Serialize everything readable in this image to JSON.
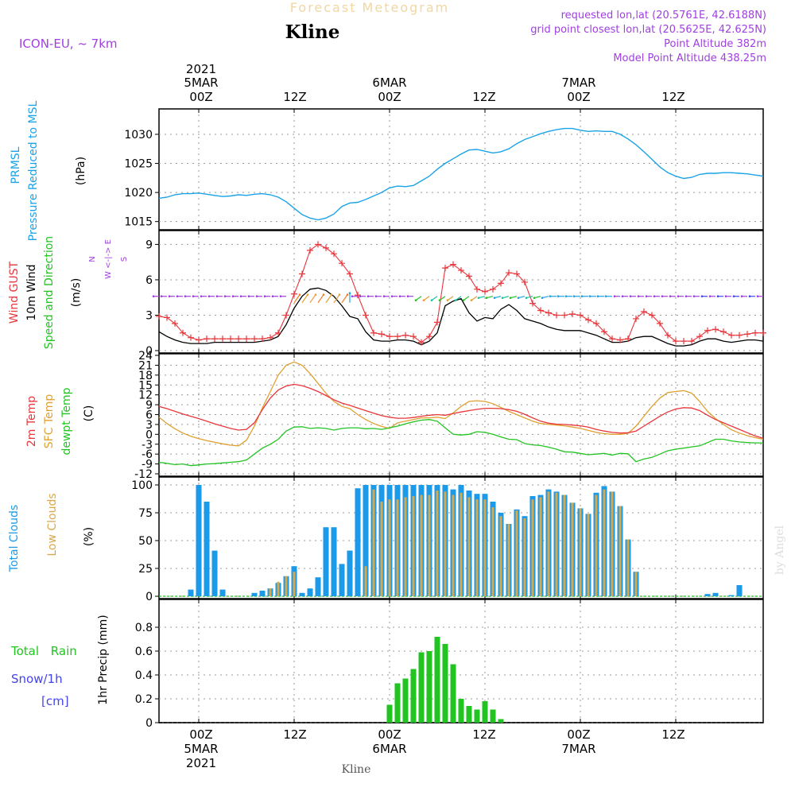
{
  "header": {
    "banner": "Forecast Meteogram",
    "location": "Kline",
    "model": "ICON-EU, ~ 7km",
    "requested": "requested lon,lat (20.5761E, 42.6188N)",
    "gridpoint": "grid point closest lon,lat (20.5625E, 42.625N)",
    "point_alt": "Point Altitude 382m",
    "model_alt": "Model Point Altitude 438.25m",
    "credit": "by Angel",
    "footer_location": "Kline"
  },
  "time_axis": {
    "top": {
      "year": "2021",
      "labels": [
        "5MAR",
        "00Z",
        "12Z",
        "6MAR",
        "00Z",
        "12Z",
        "7MAR",
        "00Z",
        "12Z"
      ]
    },
    "bottom": {
      "labels": [
        "00Z",
        "12Z",
        "00Z",
        "12Z",
        "00Z",
        "12Z"
      ],
      "dates": [
        "5MAR",
        "6MAR",
        "7MAR"
      ],
      "year": "2021"
    },
    "hours_start": -5,
    "hours_end": 71
  },
  "colors": {
    "pressure": "#1aa3e8",
    "gust": "#e8363b",
    "wind10m": "#000000",
    "temp2m": "#e8363b",
    "sfc": "#e0a030",
    "dewpt": "#22c422",
    "total_clouds": "#1a9ae8",
    "low_clouds": "#d9a84a",
    "rain": "#22c422",
    "snow": "#4444ee",
    "purple": "#a040e0",
    "grid": "#999999"
  },
  "chart_data": [
    {
      "type": "line",
      "panel": "pressure",
      "title": "PRMSL",
      "ylabel_lines": [
        "PRMSL",
        "Pressure Reduced to MSL"
      ],
      "unit": "(hPa)",
      "ylim": [
        1014,
        1033
      ],
      "yticks": [
        1015,
        1020,
        1025,
        1030
      ],
      "x": [
        -5,
        -4,
        -3,
        -2,
        -1,
        0,
        1,
        2,
        3,
        4,
        5,
        6,
        7,
        8,
        9,
        10,
        11,
        12,
        13,
        14,
        15,
        16,
        17,
        18,
        19,
        20,
        21,
        22,
        23,
        24,
        25,
        26,
        27,
        28,
        29,
        30,
        31,
        32,
        33,
        34,
        35,
        36,
        37,
        38,
        39,
        40,
        41,
        42,
        43,
        44,
        45,
        46,
        47,
        48,
        49,
        50,
        51,
        52,
        53,
        54,
        55,
        56,
        57,
        58,
        59,
        60,
        61,
        62,
        63,
        64,
        65,
        66,
        67,
        68,
        69,
        70,
        71
      ],
      "values": [
        1019.0,
        1019.2,
        1019.6,
        1019.8,
        1019.8,
        1019.9,
        1019.7,
        1019.5,
        1019.3,
        1019.4,
        1019.6,
        1019.5,
        1019.7,
        1019.8,
        1019.6,
        1019.2,
        1018.4,
        1017.3,
        1016.2,
        1015.6,
        1015.3,
        1015.6,
        1016.3,
        1017.6,
        1018.2,
        1018.3,
        1018.8,
        1019.4,
        1020.0,
        1020.8,
        1021.1,
        1021.0,
        1021.2,
        1022.0,
        1022.8,
        1024.0,
        1025.0,
        1025.8,
        1026.6,
        1027.3,
        1027.4,
        1027.1,
        1026.8,
        1027.0,
        1027.5,
        1028.4,
        1029.1,
        1029.6,
        1030.1,
        1030.5,
        1030.8,
        1031.0,
        1031.0,
        1030.7,
        1030.5,
        1030.6,
        1030.5,
        1030.5,
        1030.0,
        1029.2,
        1028.2,
        1027.0,
        1025.7,
        1024.4,
        1023.4,
        1022.8,
        1022.4,
        1022.6,
        1023.1,
        1023.3,
        1023.3,
        1023.4,
        1023.4,
        1023.3,
        1023.2,
        1023.0,
        1022.8
      ]
    },
    {
      "type": "line",
      "panel": "wind",
      "ylabel_lines": [
        "Wind GUST",
        "10m Wind",
        "Speed and Direction"
      ],
      "unit": "(m/s)",
      "compass": [
        "N",
        "W <-|-> E",
        "S"
      ],
      "ylim": [
        0,
        9.5
      ],
      "yticks": [
        0,
        3,
        6,
        9
      ],
      "x": [
        -5,
        -4,
        -3,
        -2,
        -1,
        0,
        1,
        2,
        3,
        4,
        5,
        6,
        7,
        8,
        9,
        10,
        11,
        12,
        13,
        14,
        15,
        16,
        17,
        18,
        19,
        20,
        21,
        22,
        23,
        24,
        25,
        26,
        27,
        28,
        29,
        30,
        31,
        32,
        33,
        34,
        35,
        36,
        37,
        38,
        39,
        40,
        41,
        42,
        43,
        44,
        45,
        46,
        47,
        48,
        49,
        50,
        51,
        52,
        53,
        54,
        55,
        56,
        57,
        58,
        59,
        60,
        61,
        62,
        63,
        64,
        65,
        66,
        67,
        68,
        69,
        70,
        71
      ],
      "series": [
        {
          "name": "Wind GUST",
          "values": [
            2.9,
            2.8,
            2.3,
            1.5,
            1.1,
            0.9,
            1.0,
            1.0,
            1.0,
            1.0,
            1.0,
            1.0,
            1.0,
            1.0,
            1.1,
            1.5,
            3.0,
            4.8,
            6.5,
            8.5,
            9.0,
            8.7,
            8.2,
            7.4,
            6.5,
            4.7,
            3.0,
            1.5,
            1.4,
            1.2,
            1.2,
            1.3,
            1.2,
            0.7,
            1.2,
            2.4,
            7.0,
            7.3,
            6.8,
            6.3,
            5.2,
            5.0,
            5.2,
            5.7,
            6.6,
            6.5,
            5.8,
            4.0,
            3.4,
            3.2,
            3.0,
            3.0,
            3.1,
            3.0,
            2.6,
            2.3,
            1.6,
            1.0,
            0.9,
            1.0,
            2.7,
            3.3,
            3.0,
            2.3,
            1.3,
            0.8,
            0.8,
            0.8,
            1.2,
            1.7,
            1.8,
            1.6,
            1.3,
            1.3,
            1.4,
            1.5,
            1.5
          ]
        },
        {
          "name": "10m Wind",
          "values": [
            1.6,
            1.2,
            0.9,
            0.7,
            0.6,
            0.6,
            0.6,
            0.7,
            0.7,
            0.7,
            0.7,
            0.7,
            0.7,
            0.8,
            0.9,
            1.2,
            2.2,
            3.6,
            4.6,
            5.2,
            5.3,
            5.1,
            4.6,
            3.8,
            2.9,
            2.7,
            1.6,
            0.9,
            0.8,
            0.8,
            0.9,
            0.9,
            0.8,
            0.5,
            0.8,
            1.5,
            3.8,
            4.2,
            4.4,
            3.2,
            2.5,
            2.8,
            2.7,
            3.5,
            3.9,
            3.4,
            2.7,
            2.5,
            2.3,
            2.0,
            1.8,
            1.7,
            1.7,
            1.7,
            1.5,
            1.3,
            1.0,
            0.7,
            0.7,
            0.8,
            1.1,
            1.2,
            1.2,
            0.9,
            0.6,
            0.4,
            0.4,
            0.5,
            0.8,
            1.0,
            1.0,
            0.8,
            0.7,
            0.8,
            0.9,
            0.9,
            0.8
          ]
        }
      ]
    },
    {
      "type": "line",
      "panel": "temperature",
      "ylabel_lines": [
        "2m Temp",
        "SFC Temp",
        "dewpt Temp"
      ],
      "unit": "(C)",
      "ylim": [
        -12,
        24
      ],
      "yticks": [
        -12,
        -9,
        -6,
        -3,
        0,
        3,
        6,
        9,
        12,
        15,
        18,
        21,
        24
      ],
      "x": [
        -5,
        -4,
        -3,
        -2,
        -1,
        0,
        1,
        2,
        3,
        4,
        5,
        6,
        7,
        8,
        9,
        10,
        11,
        12,
        13,
        14,
        15,
        16,
        17,
        18,
        19,
        20,
        21,
        22,
        23,
        24,
        25,
        26,
        27,
        28,
        29,
        30,
        31,
        32,
        33,
        34,
        35,
        36,
        37,
        38,
        39,
        40,
        41,
        42,
        43,
        44,
        45,
        46,
        47,
        48,
        49,
        50,
        51,
        52,
        53,
        54,
        55,
        56,
        57,
        58,
        59,
        60,
        61,
        62,
        63,
        64,
        65,
        66,
        67,
        68,
        69,
        70,
        71
      ],
      "series": [
        {
          "name": "2m Temp",
          "values": [
            8.5,
            7.8,
            7.0,
            6.2,
            5.5,
            4.8,
            4.0,
            3.2,
            2.5,
            1.8,
            1.3,
            1.5,
            3.5,
            7.5,
            11.0,
            13.5,
            14.7,
            15.2,
            14.8,
            14.0,
            13.0,
            11.8,
            10.5,
            9.5,
            8.8,
            8.0,
            7.2,
            6.4,
            5.7,
            5.2,
            4.9,
            4.9,
            5.1,
            5.5,
            5.8,
            6.0,
            5.8,
            6.3,
            6.8,
            7.2,
            7.6,
            7.9,
            7.9,
            7.8,
            7.5,
            7.0,
            6.1,
            5.0,
            4.0,
            3.4,
            3.1,
            3.0,
            2.8,
            2.6,
            2.2,
            1.5,
            1.0,
            0.6,
            0.4,
            0.5,
            1.0,
            2.5,
            4.0,
            5.5,
            6.8,
            7.7,
            8.1,
            8.0,
            7.2,
            5.8,
            4.5,
            3.5,
            2.5,
            1.5,
            0.5,
            -0.5,
            -1.2
          ]
        },
        {
          "name": "SFC Temp",
          "values": [
            5.2,
            3.3,
            1.7,
            0.4,
            -0.6,
            -1.3,
            -1.9,
            -2.4,
            -2.9,
            -3.3,
            -3.5,
            -1.8,
            2.5,
            8.0,
            13.0,
            18.0,
            21.0,
            22.0,
            21.0,
            18.5,
            15.5,
            12.5,
            10.0,
            8.5,
            7.8,
            6.0,
            4.5,
            3.3,
            2.4,
            1.8,
            3.5,
            4.0,
            4.5,
            5.0,
            5.0,
            5.2,
            4.8,
            6.5,
            8.5,
            10.0,
            10.2,
            10.0,
            9.3,
            8.2,
            7.0,
            6.0,
            5.0,
            4.0,
            3.3,
            3.0,
            2.8,
            2.6,
            2.2,
            1.8,
            1.2,
            0.6,
            0.2,
            0.0,
            0.0,
            0.3,
            2.5,
            5.5,
            8.5,
            11.0,
            12.7,
            13.0,
            13.3,
            12.5,
            10.0,
            7.0,
            4.8,
            3.0,
            1.4,
            0.4,
            -0.4,
            -1.0,
            -1.5
          ]
        },
        {
          "name": "dewpt Temp",
          "values": [
            -8.5,
            -8.8,
            -9.2,
            -9.0,
            -9.5,
            -9.3,
            -9.0,
            -8.9,
            -8.7,
            -8.5,
            -8.3,
            -7.8,
            -6.0,
            -4.2,
            -3.0,
            -1.5,
            1.0,
            2.2,
            2.3,
            1.8,
            2.0,
            1.8,
            1.3,
            1.8,
            2.0,
            2.0,
            1.7,
            1.8,
            1.5,
            2.0,
            2.5,
            3.2,
            3.8,
            4.3,
            4.5,
            4.0,
            2.0,
            0.0,
            -0.2,
            0.0,
            0.8,
            0.6,
            0.0,
            -0.8,
            -1.5,
            -1.6,
            -2.8,
            -3.2,
            -3.4,
            -3.9,
            -4.5,
            -5.3,
            -5.4,
            -5.8,
            -6.2,
            -6.0,
            -5.8,
            -6.3,
            -5.8,
            -5.9,
            -8.3,
            -7.5,
            -7.0,
            -6.0,
            -5.0,
            -4.5,
            -4.2,
            -3.8,
            -3.5,
            -2.5,
            -1.5,
            -1.5,
            -2.0,
            -2.3,
            -2.5,
            -2.6,
            -2.6
          ]
        }
      ]
    },
    {
      "type": "bar",
      "panel": "clouds",
      "ylabel_lines": [
        "Total Clouds",
        "Low Clouds"
      ],
      "unit": "(%)",
      "ylim": [
        0,
        100
      ],
      "yticks": [
        0,
        25,
        50,
        75,
        100
      ],
      "x": [
        -5,
        -4,
        -3,
        -2,
        -1,
        0,
        1,
        2,
        3,
        4,
        5,
        6,
        7,
        8,
        9,
        10,
        11,
        12,
        13,
        14,
        15,
        16,
        17,
        18,
        19,
        20,
        21,
        22,
        23,
        24,
        25,
        26,
        27,
        28,
        29,
        30,
        31,
        32,
        33,
        34,
        35,
        36,
        37,
        38,
        39,
        40,
        41,
        42,
        43,
        44,
        45,
        46,
        47,
        48,
        49,
        50,
        51,
        52,
        53,
        54,
        55,
        56,
        57,
        58,
        59,
        60,
        61,
        62,
        63,
        64,
        65,
        66,
        67,
        68,
        69,
        70,
        71
      ],
      "series": [
        {
          "name": "Total Clouds",
          "values": [
            0,
            0,
            0,
            0,
            6,
            100,
            85,
            41,
            6,
            0,
            0,
            0,
            3,
            5,
            7,
            12,
            18,
            27,
            3,
            7,
            17,
            62,
            62,
            29,
            41,
            97,
            100,
            100,
            100,
            100,
            100,
            100,
            100,
            100,
            100,
            100,
            100,
            96,
            100,
            95,
            92,
            92,
            85,
            75,
            65,
            78,
            72,
            90,
            91,
            96,
            94,
            91,
            84,
            79,
            74,
            93,
            99,
            94,
            81,
            51,
            22,
            0,
            0,
            0,
            0,
            0,
            0,
            0,
            0,
            2,
            3,
            0,
            1,
            10,
            0,
            0,
            0
          ]
        },
        {
          "name": "Low Clouds",
          "values": [
            0,
            0,
            0,
            0,
            0,
            0,
            0,
            0,
            0,
            0,
            0,
            0,
            0,
            0,
            7,
            13,
            18,
            22,
            0,
            0,
            0,
            0,
            0,
            0,
            0,
            0,
            27,
            96,
            85,
            87,
            87,
            89,
            90,
            91,
            91,
            95,
            94,
            91,
            93,
            89,
            87,
            87,
            80,
            72,
            65,
            77,
            70,
            87,
            89,
            94,
            93,
            91,
            84,
            79,
            74,
            91,
            96,
            94,
            81,
            51,
            22,
            0,
            0,
            0,
            0,
            0,
            0,
            0,
            0,
            0,
            0,
            0,
            0,
            0,
            0,
            0,
            0
          ]
        }
      ]
    },
    {
      "type": "bar",
      "panel": "precip",
      "ylabel_lines": [
        "Total Rain",
        "Snow/1h",
        "[cm]"
      ],
      "unit": "1hr Precip (mm)",
      "ylim": [
        0,
        0.98
      ],
      "yticks": [
        0,
        0.2,
        0.4,
        0.6,
        0.8
      ],
      "ytick_labels": [
        "0",
        "0.2",
        "0.4",
        "0.6",
        "0.8"
      ],
      "x": [
        24,
        25,
        26,
        27,
        28,
        29,
        30,
        31,
        32,
        33,
        34,
        35,
        36,
        37
      ],
      "series": [
        {
          "name": "Total Rain",
          "values": [
            0.15,
            0.33,
            0.37,
            0.45,
            0.59,
            0.6,
            0.72,
            0.66,
            0.49,
            0.2,
            0.14,
            0.11,
            0.18,
            0.11
          ]
        }
      ],
      "extra": {
        "x": 38,
        "value": 0.03
      }
    }
  ]
}
